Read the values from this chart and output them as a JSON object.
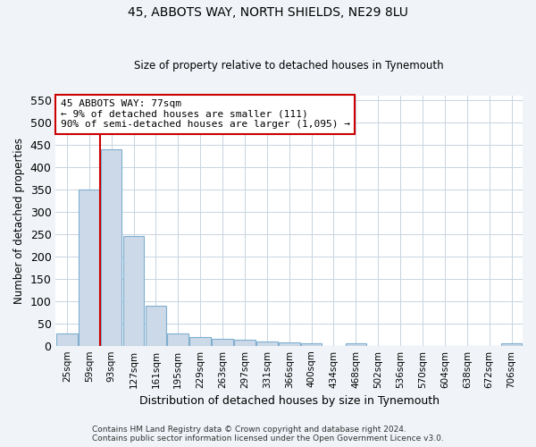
{
  "title1": "45, ABBOTS WAY, NORTH SHIELDS, NE29 8LU",
  "title2": "Size of property relative to detached houses in Tynemouth",
  "xlabel": "Distribution of detached houses by size in Tynemouth",
  "ylabel": "Number of detached properties",
  "categories": [
    "25sqm",
    "59sqm",
    "93sqm",
    "127sqm",
    "161sqm",
    "195sqm",
    "229sqm",
    "263sqm",
    "297sqm",
    "331sqm",
    "366sqm",
    "400sqm",
    "434sqm",
    "468sqm",
    "502sqm",
    "536sqm",
    "570sqm",
    "604sqm",
    "638sqm",
    "672sqm",
    "706sqm"
  ],
  "values": [
    28,
    350,
    440,
    245,
    90,
    27,
    20,
    15,
    13,
    10,
    8,
    5,
    0,
    5,
    0,
    0,
    0,
    0,
    0,
    0,
    5
  ],
  "bar_color": "#ccd9e8",
  "bar_edge_color": "#7fafd0",
  "red_line_x": 1.5,
  "annotation_text": "45 ABBOTS WAY: 77sqm\n← 9% of detached houses are smaller (111)\n90% of semi-detached houses are larger (1,095) →",
  "annotation_box_color": "#ffffff",
  "annotation_box_edge_color": "#cc0000",
  "red_line_color": "#cc0000",
  "ylim": [
    0,
    560
  ],
  "yticks": [
    0,
    50,
    100,
    150,
    200,
    250,
    300,
    350,
    400,
    450,
    500,
    550
  ],
  "footer1": "Contains HM Land Registry data © Crown copyright and database right 2024.",
  "footer2": "Contains public sector information licensed under the Open Government Licence v3.0.",
  "background_color": "#f0f4f8",
  "plot_bg_color": "#ffffff",
  "grid_color": "#c8d4e0"
}
